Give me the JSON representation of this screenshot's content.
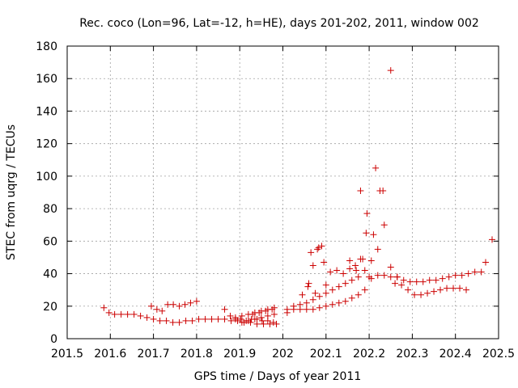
{
  "chart_data": {
    "type": "scatter",
    "title": "Rec. coco (Lon=96, Lat=-12, h=HE), days 201-202, 2011, window 002",
    "xlabel": "GPS time / Days of year 2011",
    "ylabel": "STEC from uqrg / TECUs",
    "xlim": [
      201.5,
      202.5
    ],
    "ylim": [
      0,
      180
    ],
    "x_ticks": [
      201.5,
      201.6,
      201.7,
      201.8,
      201.9,
      202,
      202.1,
      202.2,
      202.3,
      202.4,
      202.5
    ],
    "x_tick_labels": [
      "201.5",
      "201.6",
      "201.7",
      "201.8",
      "201.9",
      "202",
      "202.1",
      "202.2",
      "202.3",
      "202.4",
      "202.5"
    ],
    "y_ticks": [
      0,
      20,
      40,
      60,
      80,
      100,
      120,
      140,
      160,
      180
    ],
    "y_tick_labels": [
      "0",
      "20",
      "40",
      "60",
      "80",
      "100",
      "120",
      "140",
      "160",
      "180"
    ],
    "grid": true,
    "marker": "+",
    "color": "#cc0000",
    "series": [
      {
        "name": "STEC",
        "x": [
          201.585,
          201.597,
          201.61,
          201.625,
          201.64,
          201.655,
          201.67,
          201.685,
          201.7,
          201.715,
          201.73,
          201.745,
          201.76,
          201.775,
          201.79,
          201.805,
          201.82,
          201.835,
          201.85,
          201.865,
          201.88,
          201.895,
          201.91,
          201.925,
          201.94,
          201.955,
          201.97,
          201.985,
          201.695,
          201.708,
          201.72,
          201.733,
          201.746,
          201.76,
          201.773,
          201.786,
          201.8,
          201.865,
          201.878,
          201.89,
          201.902,
          201.915,
          201.927,
          201.94,
          201.952,
          201.965,
          201.978,
          201.89,
          201.905,
          201.92,
          201.935,
          201.95,
          201.965,
          201.98,
          201.905,
          201.92,
          201.935,
          201.95,
          201.965,
          201.98,
          201.93,
          201.945,
          201.96,
          201.975,
          202.01,
          202.025,
          202.04,
          202.055,
          202.07,
          202.085,
          202.1,
          202.115,
          202.13,
          202.145,
          202.16,
          202.175,
          202.19,
          202.205,
          202.22,
          202.235,
          202.25,
          202.265,
          202.28,
          202.295,
          202.31,
          202.325,
          202.34,
          202.355,
          202.37,
          202.385,
          202.4,
          202.415,
          202.43,
          202.445,
          202.46,
          202.01,
          202.025,
          202.04,
          202.055,
          202.07,
          202.085,
          202.1,
          202.115,
          202.13,
          202.145,
          202.16,
          202.175,
          202.19,
          202.045,
          202.058,
          202.07,
          202.083,
          202.065,
          202.08,
          202.095,
          202.11,
          202.125,
          202.06,
          202.075,
          202.09,
          202.1,
          202.14,
          202.155,
          202.168,
          202.18,
          202.193,
          202.205,
          202.22,
          202.235,
          202.25,
          202.265,
          202.155,
          202.17,
          202.185,
          202.2,
          202.18,
          202.195,
          202.21,
          202.225,
          202.215,
          202.232,
          202.25,
          202.26,
          202.275,
          202.29,
          202.305,
          202.32,
          202.335,
          202.35,
          202.365,
          202.38,
          202.395,
          202.41,
          202.425,
          202.47,
          202.485
        ],
        "y": [
          19,
          16,
          15,
          15,
          15,
          15,
          14,
          13,
          12,
          11,
          11,
          10,
          10,
          11,
          11,
          12,
          12,
          12,
          12,
          12,
          11,
          11,
          10,
          10,
          9,
          9,
          9,
          9,
          20,
          18,
          17,
          21,
          21,
          20,
          21,
          22,
          23,
          18,
          14,
          12,
          12,
          11,
          12,
          12,
          11,
          11,
          10,
          13,
          14,
          15,
          16,
          17,
          18,
          19,
          10,
          11,
          12,
          13,
          14,
          15,
          15,
          16,
          17,
          18,
          16,
          18,
          18,
          18,
          18,
          19,
          20,
          21,
          22,
          23,
          25,
          27,
          30,
          37,
          39,
          39,
          38,
          38,
          36,
          35,
          35,
          35,
          36,
          36,
          37,
          38,
          39,
          39,
          40,
          41,
          41,
          18,
          20,
          21,
          22,
          24,
          26,
          28,
          30,
          32,
          34,
          36,
          38,
          42,
          27,
          32,
          45,
          56,
          53,
          55,
          47,
          41,
          42,
          34,
          28,
          57,
          33,
          40,
          48,
          45,
          49,
          65,
          48,
          55,
          70,
          44,
          38,
          43,
          42,
          49,
          38,
          91,
          77,
          64,
          91,
          105,
          91,
          165,
          34,
          33,
          30,
          27,
          27,
          28,
          29,
          30,
          31,
          31,
          31,
          30,
          47,
          61
        ]
      }
    ]
  }
}
